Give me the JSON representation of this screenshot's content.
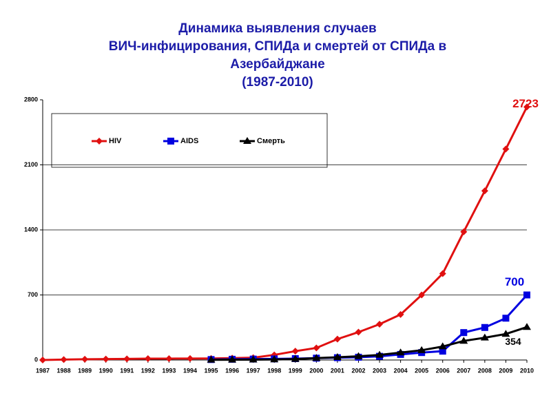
{
  "chart_data": {
    "type": "line",
    "title": [
      "Динамика выявления случаев",
      "ВИЧ-инфицирования, СПИДа и смертей от СПИДа в",
      "Азербайджане",
      "(1987-2010)"
    ],
    "categories": [
      "1987",
      "1988",
      "1989",
      "1990",
      "1991",
      "1992",
      "1993",
      "1994",
      "1995",
      "1996",
      "1997",
      "1998",
      "1999",
      "2000",
      "2001",
      "2002",
      "2003",
      "2004",
      "2005",
      "2006",
      "2007",
      "2008",
      "2009",
      "2010"
    ],
    "series": [
      {
        "name": "HIV",
        "color": "#e01010",
        "marker": "diamond",
        "values": [
          0,
          5,
          8,
          10,
          12,
          15,
          15,
          16,
          17,
          20,
          25,
          55,
          95,
          130,
          225,
          300,
          385,
          490,
          700,
          930,
          1380,
          1820,
          2270,
          2723
        ]
      },
      {
        "name": "AIDS",
        "color": "#0000e0",
        "marker": "square",
        "values": [
          null,
          null,
          null,
          null,
          null,
          null,
          null,
          null,
          5,
          8,
          10,
          12,
          15,
          20,
          25,
          30,
          40,
          60,
          80,
          95,
          295,
          350,
          450,
          700
        ]
      },
      {
        "name": "Смерть",
        "color": "#000000",
        "marker": "triangle",
        "values": [
          null,
          null,
          null,
          null,
          null,
          null,
          null,
          null,
          2,
          3,
          4,
          6,
          10,
          20,
          30,
          40,
          55,
          80,
          105,
          145,
          205,
          240,
          280,
          354
        ]
      }
    ],
    "ylim": [
      0,
      2800
    ],
    "yticks": [
      0,
      700,
      1400,
      2100,
      2800
    ],
    "grid": true
  }
}
